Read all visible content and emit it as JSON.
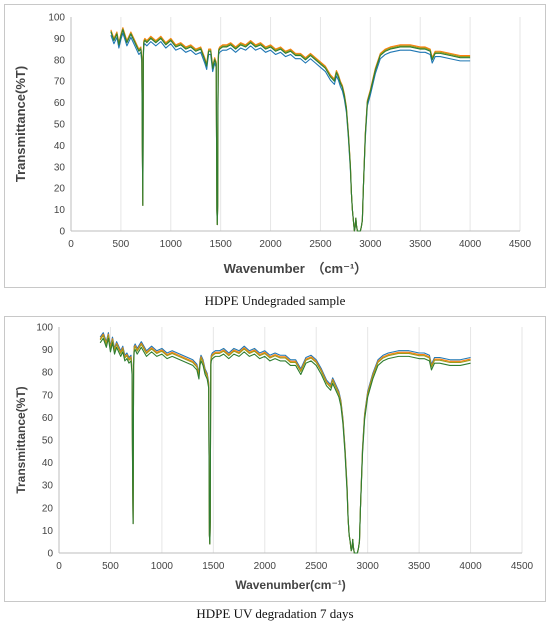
{
  "captions": [
    "HDPE Undegraded sample",
    "HDPE UV degradation 7 days"
  ],
  "chart_data": [
    {
      "type": "line",
      "title": "",
      "xlabel": "Wavenumber　（cm⁻¹）",
      "ylabel": "Transmittance(%T)",
      "xlim": [
        0,
        4500
      ],
      "ylim": [
        0,
        100
      ],
      "xticks": [
        "0",
        "500",
        "1000",
        "1500",
        "2000",
        "2500",
        "3000",
        "3500",
        "4000",
        "4500"
      ],
      "yticks": [
        "0",
        "10",
        "20",
        "30",
        "40",
        "50",
        "60",
        "70",
        "80",
        "90",
        "100"
      ],
      "grid": "vertical",
      "legend": "none",
      "series": [
        {
          "color": "#1f77b4",
          "offset": -1.5
        },
        {
          "color": "#ff7f0e",
          "offset": 1.0
        },
        {
          "color": "#9c9c1c",
          "offset": 0.5
        },
        {
          "color": "#2e7d32",
          "offset": 0.0
        }
      ],
      "x": [
        400,
        430,
        460,
        480,
        500,
        520,
        540,
        560,
        580,
        600,
        620,
        640,
        660,
        680,
        700,
        710,
        715,
        720,
        722,
        725,
        728,
        730,
        740,
        760,
        800,
        850,
        900,
        950,
        1000,
        1050,
        1100,
        1150,
        1200,
        1250,
        1300,
        1340,
        1360,
        1370,
        1380,
        1400,
        1420,
        1440,
        1455,
        1462,
        1466,
        1470,
        1473,
        1476,
        1480,
        1490,
        1520,
        1560,
        1600,
        1650,
        1700,
        1750,
        1800,
        1850,
        1900,
        1950,
        2000,
        2050,
        2100,
        2150,
        2200,
        2250,
        2300,
        2350,
        2400,
        2450,
        2500,
        2550,
        2600,
        2640,
        2660,
        2680,
        2700,
        2720,
        2740,
        2760,
        2780,
        2800,
        2810,
        2820,
        2830,
        2840,
        2848,
        2855,
        2860,
        2870,
        2880,
        2890,
        2900,
        2910,
        2920,
        2930,
        2950,
        2970,
        3000,
        3050,
        3100,
        3150,
        3200,
        3300,
        3400,
        3500,
        3550,
        3600,
        3620,
        3650,
        3700,
        3800,
        3900,
        4000
      ],
      "y": [
        93,
        89,
        92,
        87,
        91,
        94,
        91,
        88,
        90,
        92,
        90,
        88,
        86,
        84,
        85,
        80,
        40,
        12,
        38,
        82,
        86,
        88,
        89,
        88,
        90,
        88,
        90,
        87,
        89,
        86,
        87,
        85,
        86,
        84,
        85,
        80,
        77,
        81,
        84,
        84,
        76,
        80,
        78,
        10,
        3,
        12,
        60,
        80,
        84,
        85,
        86,
        86,
        87,
        85,
        87,
        86,
        88,
        86,
        87,
        85,
        86,
        84,
        85,
        83,
        84,
        82,
        82,
        80,
        82,
        80,
        78,
        76,
        72,
        70,
        74,
        72,
        69,
        67,
        63,
        57,
        45,
        30,
        18,
        10,
        5,
        0,
        2,
        6,
        3,
        0,
        0,
        0,
        0,
        2,
        5,
        20,
        45,
        60,
        65,
        75,
        82,
        84,
        85,
        86,
        86,
        85,
        85,
        84,
        80,
        83,
        83,
        82,
        81,
        81
      ]
    },
    {
      "type": "line",
      "title": "",
      "xlabel": "Wavenumber(cm⁻¹)",
      "ylabel": "Transmittance(%T)",
      "xlim": [
        0,
        4500
      ],
      "ylim": [
        0,
        100
      ],
      "xticks": [
        "0",
        "500",
        "1000",
        "1500",
        "2000",
        "2500",
        "3000",
        "3500",
        "4000",
        "4500"
      ],
      "yticks": [
        "0",
        "10",
        "20",
        "30",
        "40",
        "50",
        "60",
        "70",
        "80",
        "90",
        "100"
      ],
      "grid": "vertical",
      "legend": "none",
      "series": [
        {
          "color": "#1f77b4",
          "offset": 1.5
        },
        {
          "color": "#ff7f0e",
          "offset": 0.8
        },
        {
          "color": "#9c9c1c",
          "offset": 0.3
        },
        {
          "color": "#2e7d32",
          "offset": -1.0
        }
      ],
      "x": [
        400,
        430,
        460,
        480,
        500,
        520,
        540,
        560,
        580,
        600,
        620,
        640,
        660,
        680,
        700,
        710,
        715,
        720,
        722,
        725,
        728,
        730,
        740,
        760,
        800,
        850,
        900,
        950,
        1000,
        1050,
        1100,
        1150,
        1200,
        1250,
        1300,
        1340,
        1360,
        1370,
        1380,
        1400,
        1420,
        1440,
        1455,
        1462,
        1466,
        1470,
        1473,
        1476,
        1480,
        1490,
        1520,
        1560,
        1600,
        1650,
        1700,
        1750,
        1800,
        1850,
        1900,
        1950,
        2000,
        2050,
        2100,
        2150,
        2200,
        2250,
        2300,
        2350,
        2400,
        2450,
        2500,
        2550,
        2600,
        2640,
        2660,
        2680,
        2700,
        2720,
        2740,
        2760,
        2780,
        2800,
        2810,
        2820,
        2830,
        2840,
        2848,
        2855,
        2860,
        2870,
        2880,
        2890,
        2900,
        2910,
        2920,
        2930,
        2950,
        2970,
        3000,
        3050,
        3100,
        3150,
        3200,
        3300,
        3400,
        3500,
        3550,
        3600,
        3620,
        3650,
        3700,
        3800,
        3900,
        4000
      ],
      "y": [
        94,
        96,
        92,
        96,
        90,
        94,
        89,
        92,
        90,
        88,
        90,
        86,
        87,
        85,
        86,
        80,
        38,
        13,
        35,
        84,
        86,
        90,
        91,
        89,
        92,
        88,
        90,
        88,
        89,
        87,
        88,
        87,
        86,
        85,
        84,
        82,
        78,
        84,
        86,
        84,
        80,
        78,
        74,
        8,
        4,
        14,
        60,
        84,
        86,
        87,
        88,
        88,
        89,
        87,
        89,
        88,
        90,
        88,
        89,
        87,
        88,
        86,
        87,
        86,
        86,
        84,
        84,
        80,
        85,
        86,
        84,
        80,
        75,
        73,
        76,
        74,
        72,
        70,
        66,
        58,
        45,
        28,
        15,
        8,
        5,
        1,
        2,
        6,
        3,
        0,
        0,
        0,
        0,
        2,
        5,
        20,
        45,
        60,
        70,
        78,
        84,
        86,
        87,
        88,
        88,
        87,
        87,
        86,
        82,
        85,
        85,
        84,
        84,
        85
      ]
    }
  ]
}
